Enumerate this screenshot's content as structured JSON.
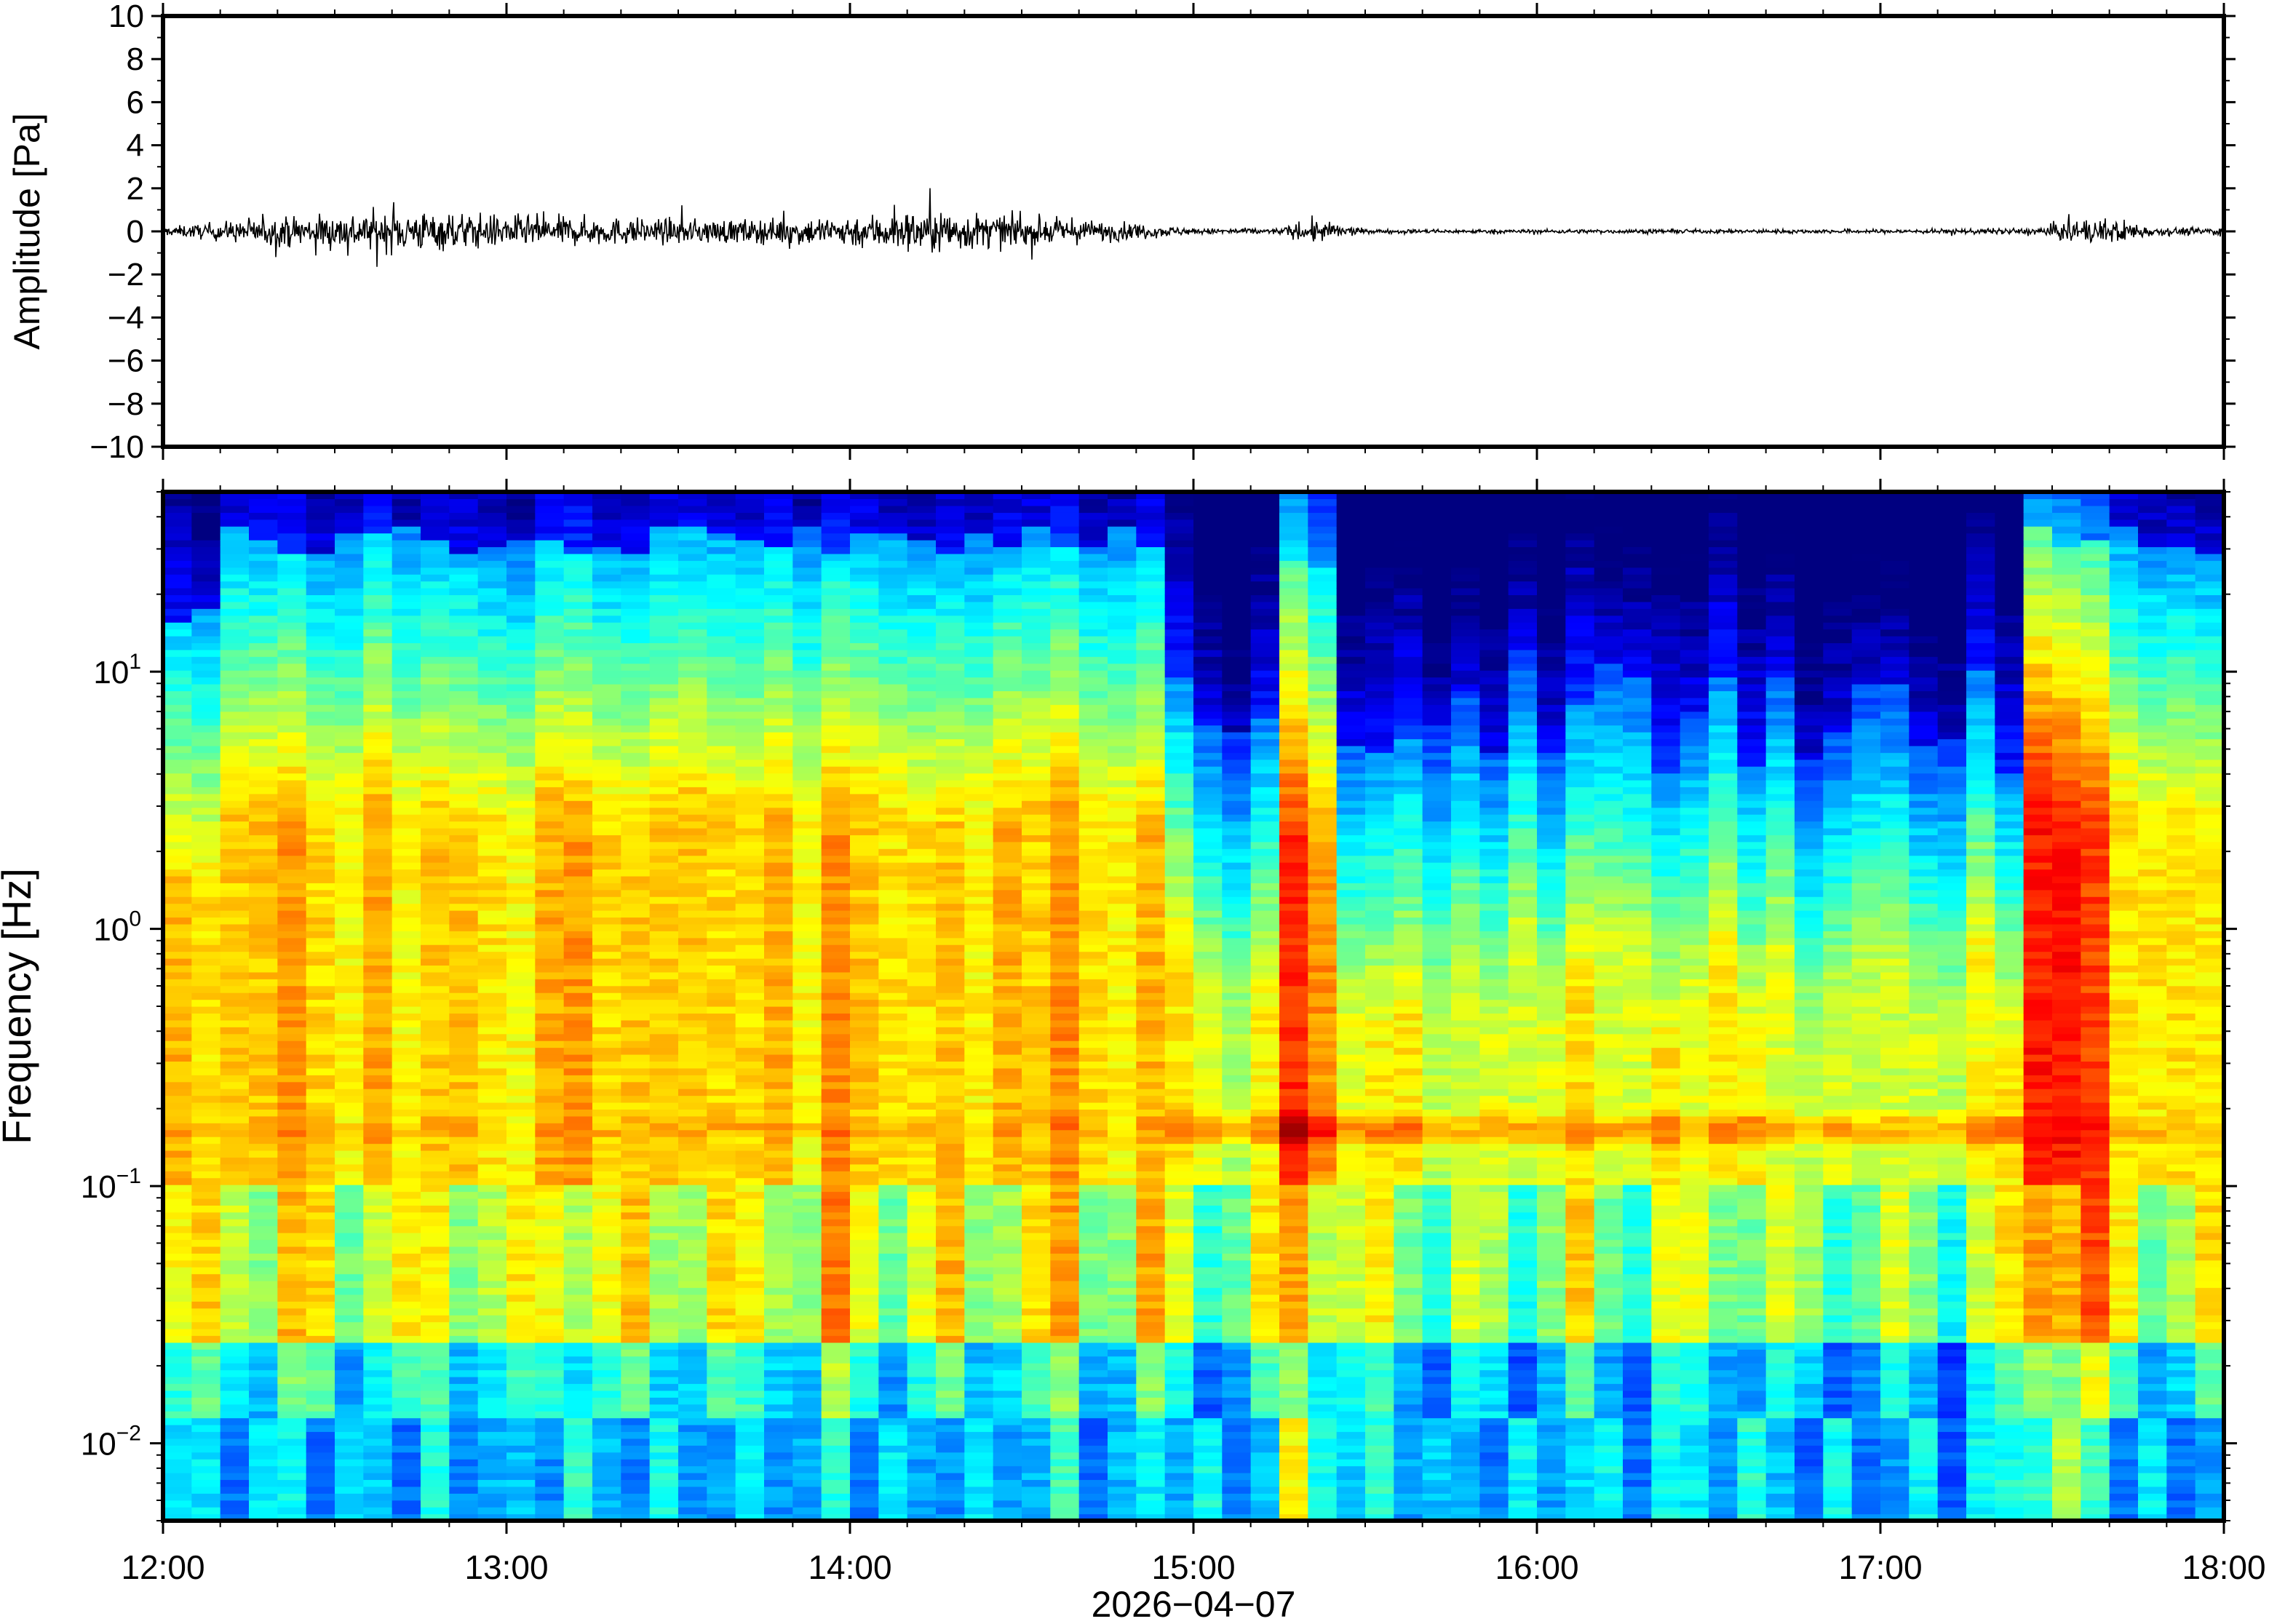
{
  "chart_data": [
    {
      "type": "line",
      "title": "",
      "ylabel": "Amplitude [Pa]",
      "xlabel": "",
      "ylim": [
        -10,
        10
      ],
      "yticks": [
        "10",
        "8",
        "6",
        "4",
        "2",
        "0",
        "−2",
        "−4",
        "−6",
        "−8",
        "−10"
      ],
      "ytick_values": [
        10,
        8,
        6,
        4,
        2,
        0,
        -2,
        -4,
        -6,
        -8,
        -10
      ],
      "xlim": [
        "2026-04-07T12:00",
        "2026-04-07T18:00"
      ],
      "grid": false,
      "series": [
        {
          "color": "#000000",
          "envelope_time_hours": [
            12.0,
            12.25,
            12.5,
            12.75,
            13.0,
            13.25,
            13.5,
            13.75,
            14.0,
            14.25,
            14.5,
            14.75,
            15.0,
            15.25,
            15.35,
            15.5,
            16.0,
            16.5,
            17.0,
            17.45,
            17.55,
            17.7,
            17.8,
            18.0
          ],
          "envelope_amplitude_pa": [
            0.2,
            0.6,
            0.9,
            1.0,
            0.8,
            0.7,
            0.6,
            0.6,
            0.8,
            1.1,
            0.7,
            0.5,
            0.15,
            0.15,
            0.6,
            0.1,
            0.1,
            0.1,
            0.1,
            0.15,
            0.6,
            0.6,
            0.2,
            0.2
          ]
        }
      ]
    },
    {
      "type": "heatmap",
      "title": "",
      "ylabel": "Frequency [Hz]",
      "xlabel": "2026−04−07",
      "yscale": "log",
      "ylim": [
        0.005,
        50
      ],
      "yticks": [
        {
          "base": "10",
          "exp": "1",
          "value": 10
        },
        {
          "base": "10",
          "exp": "0",
          "value": 1
        },
        {
          "base": "10",
          "exp": "−1",
          "value": 0.1
        },
        {
          "base": "10",
          "exp": "−2",
          "value": 0.01
        }
      ],
      "xticks": [
        "12:00",
        "13:00",
        "14:00",
        "15:00",
        "16:00",
        "17:00",
        "18:00"
      ],
      "xtick_hours": [
        12,
        13,
        14,
        15,
        16,
        17,
        18
      ],
      "colormap": "jet",
      "colorbar": "none",
      "quiet_period": [
        "14:53",
        "17:25"
      ],
      "event_columns_hours": [
        15.33,
        17.5,
        17.62
      ],
      "grid": false
    }
  ]
}
